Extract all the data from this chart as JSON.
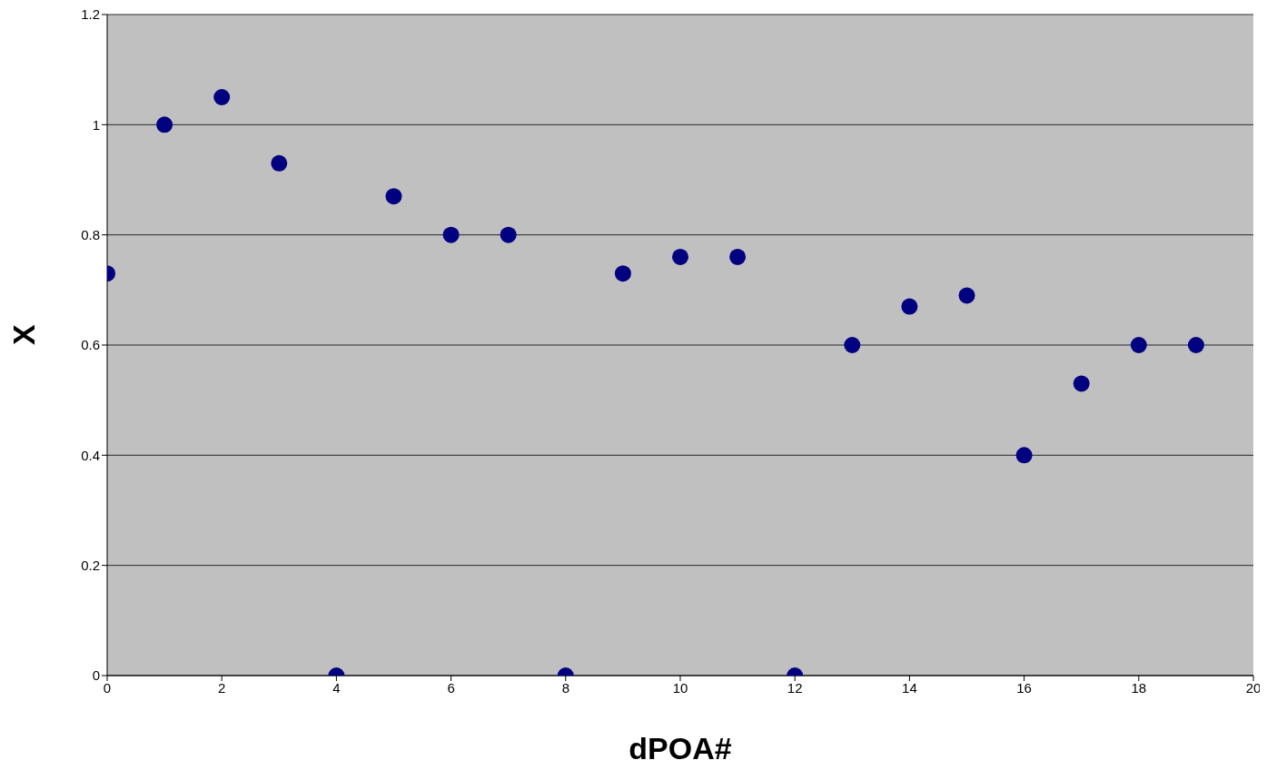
{
  "chart_data": {
    "type": "scatter",
    "xlabel": "dPOA#",
    "ylabel": "X",
    "x": [
      0,
      1,
      2,
      3,
      4,
      5,
      6,
      7,
      8,
      9,
      10,
      11,
      12,
      13,
      14,
      15,
      16,
      17,
      18,
      19
    ],
    "series": [
      {
        "color": "#000080",
        "values": [
          0.73,
          1.0,
          1.05,
          0.93,
          0,
          0.87,
          0.8,
          0.8,
          0,
          0.73,
          0.76,
          0.76,
          0,
          0.6,
          0.67,
          0.69,
          0.4,
          0.53,
          0.6,
          0.6
        ]
      }
    ],
    "xlim": [
      0,
      20
    ],
    "xticks": [
      0,
      2,
      4,
      6,
      8,
      10,
      12,
      14,
      16,
      18,
      20
    ],
    "ylim": [
      0,
      1.2
    ],
    "yticks": [
      0,
      0.2,
      0.4,
      0.6,
      0.8,
      1,
      1.2
    ],
    "grid": "y",
    "marker": "circle"
  }
}
